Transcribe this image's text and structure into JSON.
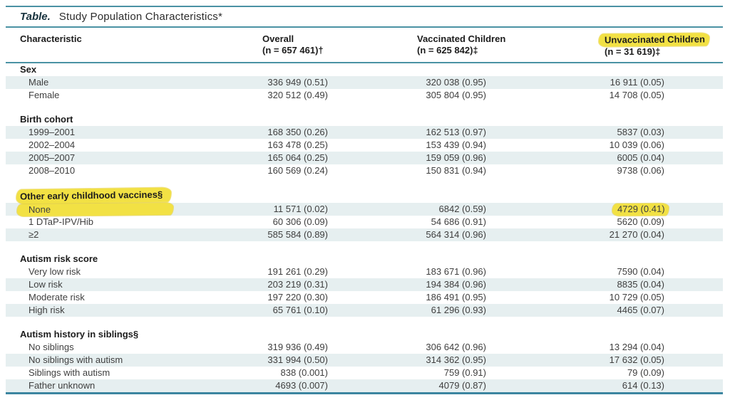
{
  "title": {
    "label": "Table.",
    "text": "Study Population Characteristics*"
  },
  "header": {
    "characteristic": "Characteristic",
    "overall": {
      "line1": "Overall",
      "line2": "(n = 657 461)†"
    },
    "vaccinated": {
      "line1": "Vaccinated Children",
      "line2": "(n = 625 842)‡"
    },
    "unvaccinated": {
      "line1": "Unvaccinated Children",
      "line2": "(n = 31 619)‡"
    }
  },
  "sections": [
    {
      "label": "Sex",
      "rows": [
        {
          "label": "Male",
          "overall": "336 949 (0.51)",
          "vaccinated": "320 038 (0.95)",
          "unvaccinated": "16 911 (0.05)"
        },
        {
          "label": "Female",
          "overall": "320 512 (0.49)",
          "vaccinated": "305 804 (0.95)",
          "unvaccinated": "14 708 (0.05)"
        }
      ]
    },
    {
      "label": "Birth cohort",
      "rows": [
        {
          "label": "1999–2001",
          "overall": "168 350 (0.26)",
          "vaccinated": "162 513 (0.97)",
          "unvaccinated": "5837 (0.03)"
        },
        {
          "label": "2002–2004",
          "overall": "163 478 (0.25)",
          "vaccinated": "153 439 (0.94)",
          "unvaccinated": "10 039 (0.06)"
        },
        {
          "label": "2005–2007",
          "overall": "165 064 (0.25)",
          "vaccinated": "159 059 (0.96)",
          "unvaccinated": "6005 (0.04)"
        },
        {
          "label": "2008–2010",
          "overall": "160 569 (0.24)",
          "vaccinated": "150 831 (0.94)",
          "unvaccinated": "9738 (0.06)"
        }
      ]
    },
    {
      "label": "Other early childhood vaccines§",
      "rows": [
        {
          "label": "None",
          "overall": "11 571 (0.02)",
          "vaccinated": "6842 (0.59)",
          "unvaccinated": "4729 (0.41)"
        },
        {
          "label": "1 DTaP-IPV/Hib",
          "overall": "60 306 (0.09)",
          "vaccinated": "54 686 (0.91)",
          "unvaccinated": "5620 (0.09)"
        },
        {
          "label": "≥2",
          "overall": "585 584 (0.89)",
          "vaccinated": "564 314 (0.96)",
          "unvaccinated": "21 270 (0.04)"
        }
      ]
    },
    {
      "label": "Autism risk score",
      "rows": [
        {
          "label": "Very low risk",
          "overall": "191 261 (0.29)",
          "vaccinated": "183 671 (0.96)",
          "unvaccinated": "7590 (0.04)"
        },
        {
          "label": "Low risk",
          "overall": "203 219 (0.31)",
          "vaccinated": "194 384 (0.96)",
          "unvaccinated": "8835 (0.04)"
        },
        {
          "label": "Moderate risk",
          "overall": "197 220 (0.30)",
          "vaccinated": "186 491 (0.95)",
          "unvaccinated": "10 729 (0.05)"
        },
        {
          "label": "High risk",
          "overall": "65 761 (0.10)",
          "vaccinated": "61 296 (0.93)",
          "unvaccinated": "4465 (0.07)"
        }
      ]
    },
    {
      "label": "Autism history in siblings§",
      "rows": [
        {
          "label": "No siblings",
          "overall": "319 936 (0.49)",
          "vaccinated": "306 642 (0.96)",
          "unvaccinated": "13 294 (0.04)"
        },
        {
          "label": "No siblings with autism",
          "overall": "331 994 (0.50)",
          "vaccinated": "314 362 (0.95)",
          "unvaccinated": "17 632 (0.05)"
        },
        {
          "label": "Siblings with autism",
          "overall": "838 (0.001)",
          "vaccinated": "759 (0.91)",
          "unvaccinated": "79 (0.09)"
        },
        {
          "label": "Father unknown",
          "overall": "4693 (0.007)",
          "vaccinated": "4079 (0.87)",
          "unvaccinated": "614 (0.13)"
        }
      ]
    }
  ],
  "annotations": {
    "highlighter_color": "#f2e144",
    "highlighted_items": [
      "Unvaccinated Children",
      "Other early childhood vaccines§",
      "None",
      "4729 (0.41)"
    ]
  },
  "colors": {
    "rule_teal": "#4a92a4",
    "bottom_rule_teal": "#3c85a0",
    "row_shade": "#e6eff0",
    "text": "#3f3f3f"
  }
}
